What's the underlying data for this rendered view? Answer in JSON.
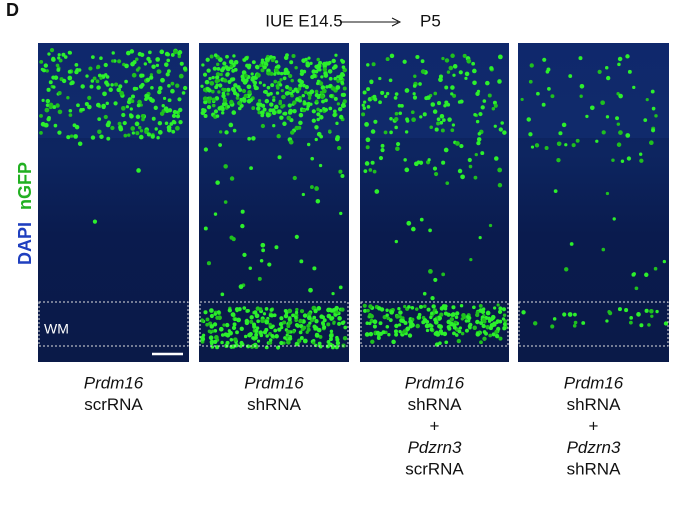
{
  "panel_label": "D",
  "header": {
    "left": "IUE E14.5",
    "right": "P5"
  },
  "stain_labels": [
    {
      "text": "DAPI",
      "color": "#1f3fbf"
    },
    {
      "text": "nGFP",
      "color": "#22b022"
    }
  ],
  "region_label": "WM",
  "columns": [
    {
      "lines": [
        {
          "text": "Prdm16",
          "italic": true
        },
        {
          "text": "scrRNA",
          "italic": false
        }
      ]
    },
    {
      "lines": [
        {
          "text": "Prdm16",
          "italic": true
        },
        {
          "text": "shRNA",
          "italic": false
        }
      ]
    },
    {
      "lines": [
        {
          "text": "Prdm16",
          "italic": true
        },
        {
          "text": "shRNA",
          "italic": false
        },
        {
          "text": "+",
          "italic": false
        },
        {
          "text": "Pdzrn3",
          "italic": true
        },
        {
          "text": "scrRNA",
          "italic": false
        }
      ]
    },
    {
      "lines": [
        {
          "text": "Prdm16",
          "italic": true
        },
        {
          "text": "shRNA",
          "italic": false
        },
        {
          "text": "+",
          "italic": false
        },
        {
          "text": "Pdzrn3",
          "italic": true
        },
        {
          "text": "shRNA",
          "italic": false
        }
      ]
    }
  ]
}
